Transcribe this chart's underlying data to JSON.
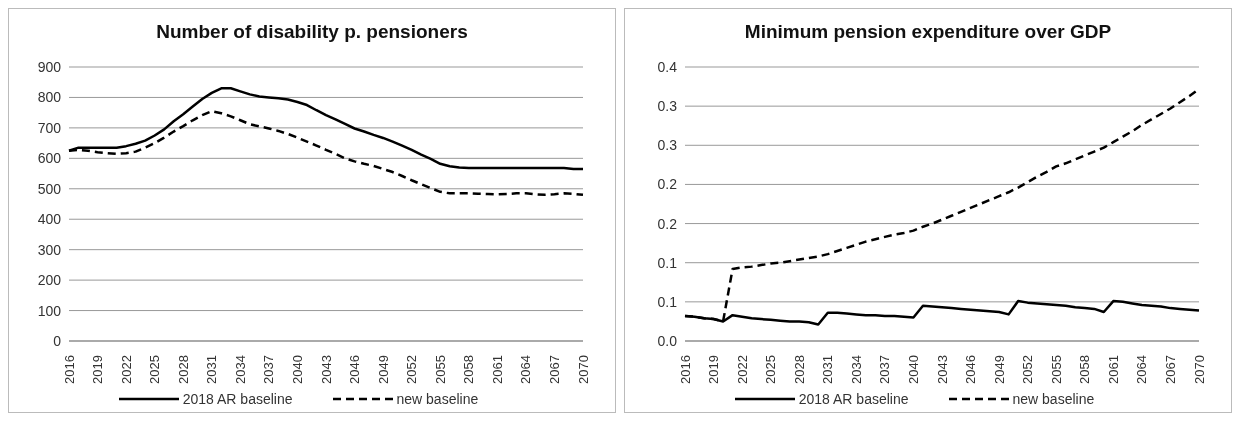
{
  "chart_data": [
    {
      "type": "line",
      "title": "Number of disability p. pensioners",
      "categories": [
        "2016",
        null,
        null,
        "2019",
        null,
        null,
        "2022",
        null,
        null,
        "2025",
        null,
        null,
        "2028",
        null,
        null,
        "2031",
        null,
        null,
        "2034",
        null,
        null,
        "2037",
        null,
        null,
        "2040",
        null,
        null,
        "2043",
        null,
        null,
        "2046",
        null,
        null,
        "2049",
        null,
        null,
        "2052",
        null,
        null,
        "2055",
        null,
        null,
        "2058",
        null,
        null,
        "2061",
        null,
        null,
        "2064",
        null,
        null,
        "2067",
        null,
        null,
        "2070"
      ],
      "series": [
        {
          "name": "2018 AR baseline",
          "color": "#000000",
          "line_style": "solid",
          "values": [
            625,
            635,
            635,
            635,
            635,
            635,
            640,
            648,
            658,
            675,
            695,
            722,
            745,
            770,
            795,
            815,
            830,
            830,
            820,
            810,
            803,
            800,
            797,
            793,
            785,
            775,
            758,
            742,
            728,
            713,
            698,
            688,
            677,
            667,
            655,
            642,
            628,
            612,
            598,
            582,
            574,
            570,
            568,
            568,
            568,
            568,
            568,
            568,
            568,
            568,
            568,
            568,
            568,
            565,
            565
          ]
        },
        {
          "name": "new baseline",
          "color": "#000000",
          "line_style": "dashed",
          "values": [
            625,
            628,
            625,
            620,
            617,
            615,
            617,
            622,
            635,
            650,
            668,
            688,
            706,
            725,
            742,
            755,
            748,
            738,
            725,
            712,
            705,
            698,
            690,
            680,
            668,
            655,
            642,
            628,
            615,
            600,
            590,
            582,
            575,
            565,
            555,
            542,
            528,
            515,
            502,
            490,
            485,
            485,
            485,
            484,
            483,
            482,
            483,
            485,
            485,
            482,
            480,
            482,
            485,
            483,
            480
          ]
        }
      ],
      "ylim": [
        0,
        900
      ],
      "yticks": [
        0,
        100,
        200,
        300,
        400,
        500,
        600,
        700,
        800,
        900
      ],
      "grid": "y",
      "legend": "bottom",
      "marker": "none"
    },
    {
      "type": "line",
      "title": "Minimum pension expenditure over GDP",
      "categories": [
        "2016",
        null,
        null,
        "2019",
        null,
        null,
        "2022",
        null,
        null,
        "2025",
        null,
        null,
        "2028",
        null,
        null,
        "2031",
        null,
        null,
        "2034",
        null,
        null,
        "2037",
        null,
        null,
        "2040",
        null,
        null,
        "2043",
        null,
        null,
        "2046",
        null,
        null,
        "2049",
        null,
        null,
        "2052",
        null,
        null,
        "2055",
        null,
        null,
        "2058",
        null,
        null,
        "2061",
        null,
        null,
        "2064",
        null,
        null,
        "2067",
        null,
        null,
        "2070"
      ],
      "series": [
        {
          "name": "2018 AR baseline",
          "color": "#000000",
          "line_style": "solid",
          "values": [
            0.032,
            0.031,
            0.029,
            0.028,
            0.025,
            0.033,
            0.031,
            0.029,
            0.028,
            0.027,
            0.026,
            0.025,
            0.025,
            0.024,
            0.021,
            0.036,
            0.036,
            0.035,
            0.034,
            0.033,
            0.033,
            0.032,
            0.032,
            0.031,
            0.03,
            0.045,
            0.044,
            0.043,
            0.042,
            0.041,
            0.04,
            0.039,
            0.038,
            0.037,
            0.034,
            0.051,
            0.049,
            0.048,
            0.047,
            0.046,
            0.045,
            0.043,
            0.042,
            0.041,
            0.037,
            0.051,
            0.05,
            0.048,
            0.046,
            0.045,
            0.044,
            0.042,
            0.041,
            0.04,
            0.039
          ]
        },
        {
          "name": "new baseline",
          "color": "#000000",
          "line_style": "dashed",
          "values": [
            0.032,
            0.031,
            0.029,
            0.028,
            0.025,
            0.092,
            0.094,
            0.095,
            0.097,
            0.099,
            0.1,
            0.102,
            0.104,
            0.106,
            0.108,
            0.111,
            0.115,
            0.119,
            0.123,
            0.127,
            0.13,
            0.133,
            0.136,
            0.138,
            0.141,
            0.146,
            0.15,
            0.155,
            0.16,
            0.165,
            0.17,
            0.175,
            0.18,
            0.185,
            0.19,
            0.196,
            0.203,
            0.21,
            0.216,
            0.223,
            0.227,
            0.232,
            0.237,
            0.242,
            0.247,
            0.254,
            0.261,
            0.268,
            0.276,
            0.283,
            0.29,
            0.297,
            0.305,
            0.313,
            0.322
          ]
        }
      ],
      "ylim": [
        0,
        0.35
      ],
      "yticks": [
        {
          "value": 0,
          "label": "0.0"
        },
        {
          "value": 0.05,
          "label": "0.1"
        },
        {
          "value": 0.1,
          "label": "0.1"
        },
        {
          "value": 0.15,
          "label": "0.2"
        },
        {
          "value": 0.2,
          "label": "0.2"
        },
        {
          "value": 0.25,
          "label": "0.3"
        },
        {
          "value": 0.3,
          "label": "0.3"
        },
        {
          "value": 0.35,
          "label": "0.4"
        }
      ],
      "grid": "y",
      "legend": "bottom",
      "marker": "none"
    }
  ]
}
